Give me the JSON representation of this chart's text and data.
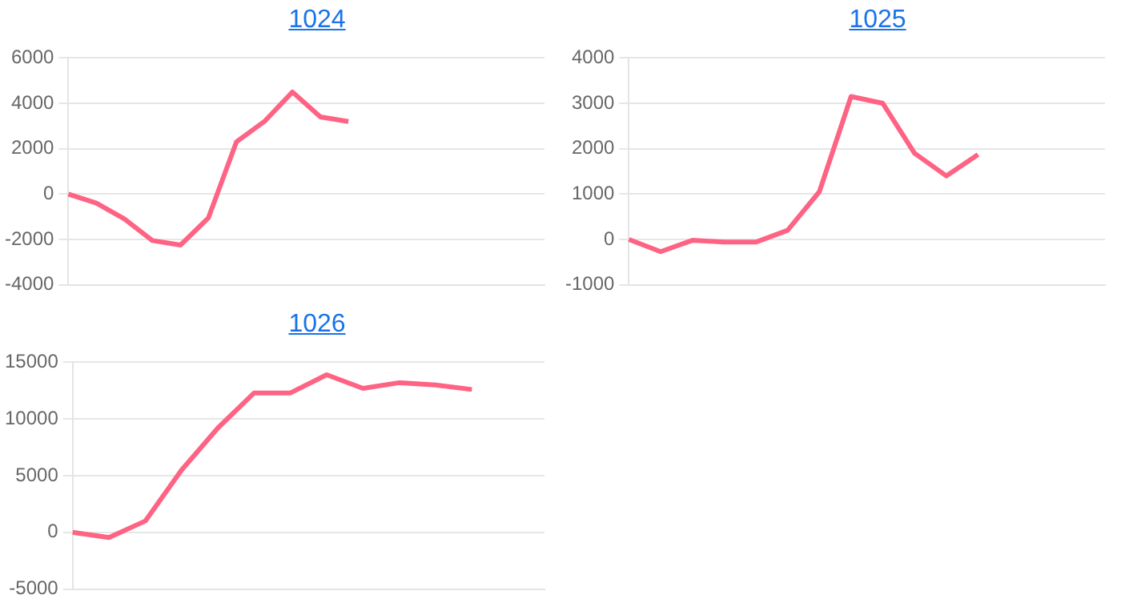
{
  "chart_data": [
    {
      "type": "line",
      "title": "1024",
      "categories": [
        null,
        null,
        null,
        null,
        null,
        null,
        null,
        null,
        null,
        null,
        null,
        null,
        null,
        null,
        null,
        null,
        null,
        null
      ],
      "values": [
        0,
        -400,
        -1100,
        -2050,
        -2250,
        -1050,
        2300,
        3200,
        4500,
        3400,
        3200,
        null,
        null,
        null,
        null,
        null,
        null,
        null
      ],
      "color": "#ff6384",
      "ylim": [
        -4000,
        6000
      ],
      "yticks": [
        -4000,
        -2000,
        0,
        2000,
        4000,
        6000
      ],
      "grid": "y",
      "tick_labels": "y",
      "marker": "none"
    },
    {
      "type": "line",
      "title": "1025",
      "categories": [
        null,
        null,
        null,
        null,
        null,
        null,
        null,
        null,
        null,
        null,
        null,
        null,
        null,
        null,
        null,
        null
      ],
      "values": [
        0,
        -270,
        -20,
        -60,
        -60,
        200,
        1050,
        3150,
        3000,
        1900,
        1400,
        1870,
        null,
        null,
        null,
        null
      ],
      "color": "#ff6384",
      "ylim": [
        -1000,
        4000
      ],
      "yticks": [
        -1000,
        0,
        1000,
        2000,
        3000,
        4000
      ],
      "grid": "y",
      "tick_labels": "y",
      "marker": "none"
    },
    {
      "type": "line",
      "title": "1026",
      "categories": [
        null,
        null,
        null,
        null,
        null,
        null,
        null,
        null,
        null,
        null,
        null,
        null,
        null,
        null
      ],
      "values": [
        0,
        -450,
        1000,
        5500,
        9200,
        12300,
        12300,
        13900,
        12700,
        13200,
        13000,
        12600,
        null,
        null
      ],
      "color": "#ff6384",
      "ylim": [
        -5000,
        15000
      ],
      "yticks": [
        -5000,
        0,
        5000,
        10000,
        15000
      ],
      "grid": "y",
      "tick_labels": "y",
      "marker": "none"
    }
  ]
}
